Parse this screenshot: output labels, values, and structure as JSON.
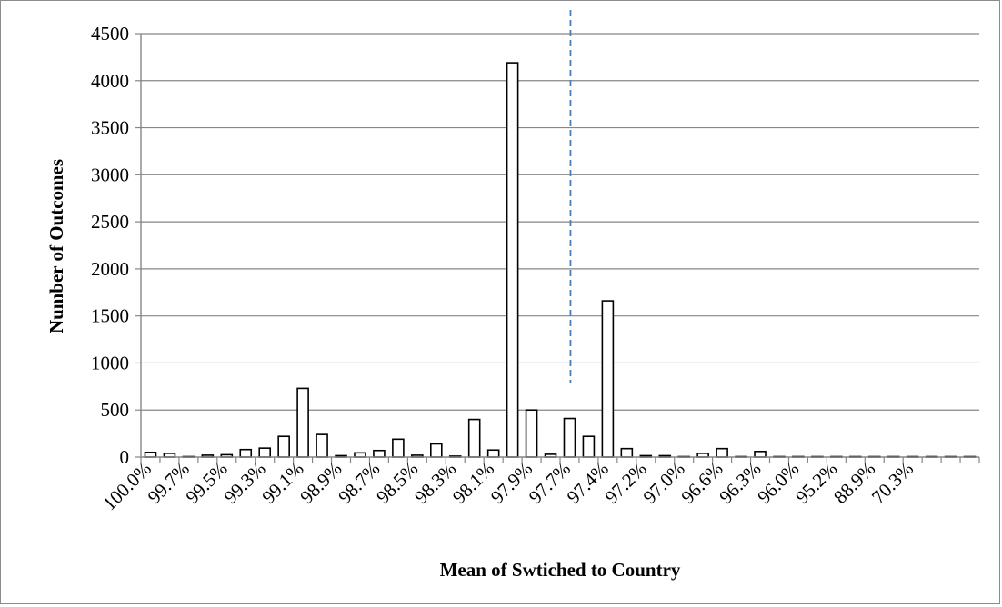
{
  "chart_data": {
    "type": "bar",
    "xlabel": "Mean of Swtiched to Country",
    "ylabel": "Number of Outcomes",
    "ylim": [
      0,
      4500
    ],
    "yticks": [
      0,
      500,
      1000,
      1500,
      2000,
      2500,
      3000,
      3500,
      4000,
      4500
    ],
    "grid": "horizontal",
    "reference_line": {
      "style": "dashed",
      "color": "#4a7ebb",
      "category_index": 22
    },
    "x_tick_labels": [
      "100.0%",
      "99.7%",
      "99.5%",
      "99.3%",
      "99.1%",
      "98.9%",
      "98.7%",
      "98.5%",
      "98.3%",
      "98.1%",
      "97.9%",
      "97.7%",
      "97.4%",
      "97.2%",
      "97.0%",
      "96.6%",
      "96.3%",
      "96.0%",
      "95.2%",
      "88.9%",
      "70.3%"
    ],
    "x_tick_every": 2,
    "bar_count": 44,
    "values": [
      50,
      40,
      5,
      20,
      25,
      80,
      95,
      220,
      730,
      240,
      15,
      45,
      70,
      190,
      20,
      140,
      10,
      400,
      75,
      4190,
      500,
      30,
      410,
      220,
      1660,
      90,
      15,
      15,
      5,
      40,
      90,
      5,
      60,
      5,
      5,
      3,
      3,
      3,
      3,
      3,
      3,
      3,
      3,
      3
    ],
    "bar_fill": "#ffffff",
    "bar_stroke": "#000000",
    "grid_color": "#868686"
  }
}
